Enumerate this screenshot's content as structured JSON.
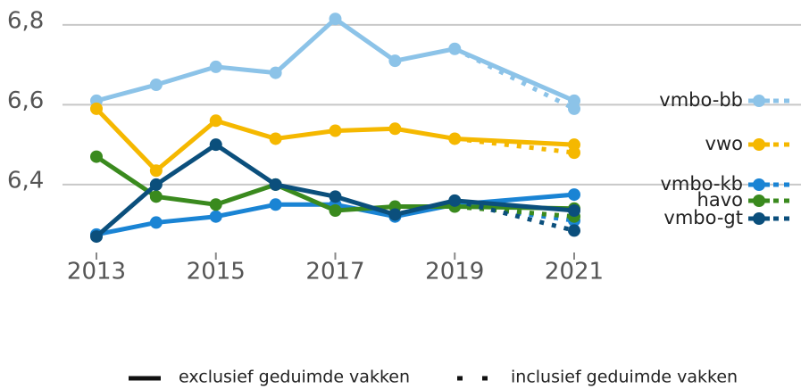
{
  "chart_data": {
    "type": "line",
    "x": [
      2013,
      2014,
      2015,
      2016,
      2017,
      2018,
      2019,
      2021
    ],
    "xlim": [
      2013,
      2021
    ],
    "xticks": [
      2013,
      2015,
      2017,
      2019,
      2021
    ],
    "ylim": [
      6.23,
      6.84
    ],
    "yticks": [
      {
        "value": 6.4,
        "label": "6,4"
      },
      {
        "value": 6.6,
        "label": "6,6"
      },
      {
        "value": 6.8,
        "label": "6,8"
      }
    ],
    "grid": true,
    "legend": "right",
    "series": [
      {
        "name": "vmbo-bb",
        "color": "#8cc3e8",
        "values": [
          6.61,
          6.65,
          6.695,
          6.68,
          6.815,
          6.71,
          6.74,
          6.61
        ],
        "values_incl": [
          null,
          null,
          null,
          null,
          null,
          null,
          null,
          6.59
        ]
      },
      {
        "name": "vwo",
        "color": "#f5b800",
        "values": [
          6.59,
          6.435,
          6.56,
          6.515,
          6.535,
          6.54,
          6.515,
          6.5
        ],
        "values_incl": [
          null,
          null,
          null,
          null,
          null,
          null,
          null,
          6.48
        ]
      },
      {
        "name": "vmbo-kb",
        "color": "#1a84d4",
        "values": [
          6.275,
          6.305,
          6.32,
          6.35,
          6.35,
          6.32,
          6.35,
          6.375
        ],
        "values_incl": [
          null,
          null,
          null,
          null,
          null,
          null,
          null,
          6.31
        ]
      },
      {
        "name": "havo",
        "color": "#3a8a1e",
        "values": [
          6.47,
          6.37,
          6.35,
          6.4,
          6.335,
          6.345,
          6.345,
          6.34
        ],
        "values_incl": [
          null,
          null,
          null,
          null,
          null,
          null,
          null,
          6.32
        ]
      },
      {
        "name": "vmbo-gt",
        "color": "#0b4f7c",
        "values": [
          6.27,
          6.4,
          6.5,
          6.4,
          6.37,
          6.325,
          6.36,
          6.335
        ],
        "values_incl": [
          null,
          null,
          null,
          null,
          null,
          null,
          null,
          6.285
        ]
      }
    ],
    "line_styles": [
      "exclusief geduimde vakken",
      "inclusief geduimde vakken"
    ]
  }
}
